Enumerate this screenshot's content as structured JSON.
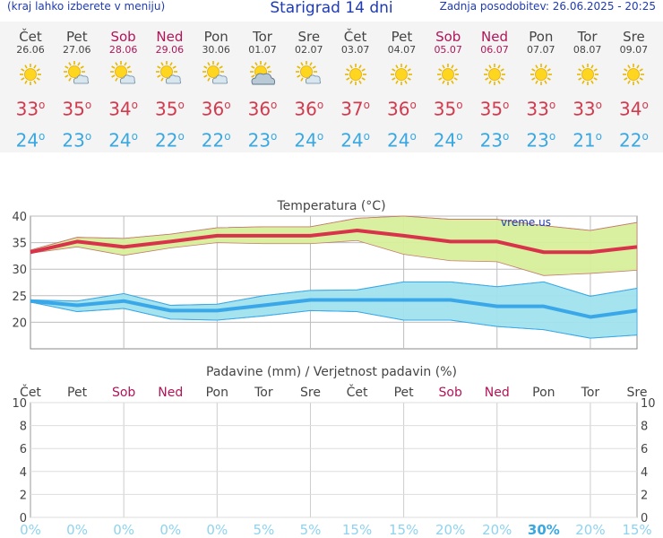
{
  "header": {
    "hint": "(kraj lahko izberete v meniju)",
    "title": "Starigrad 14 dni",
    "updated": "Zadnja posodobitev: 26.06.2025 - 20:25"
  },
  "days": [
    {
      "name": "Čet",
      "date": "26.06",
      "weekend": false,
      "icon": "sun-icon",
      "max": "33",
      "min": "24"
    },
    {
      "name": "Pet",
      "date": "27.06",
      "weekend": false,
      "icon": "sun-cloud-icon",
      "max": "35",
      "min": "23"
    },
    {
      "name": "Sob",
      "date": "28.06",
      "weekend": true,
      "icon": "sun-cloud-icon",
      "max": "34",
      "min": "24"
    },
    {
      "name": "Ned",
      "date": "29.06",
      "weekend": true,
      "icon": "sun-cloud-icon",
      "max": "35",
      "min": "22"
    },
    {
      "name": "Pon",
      "date": "30.06",
      "weekend": false,
      "icon": "sun-cloud-icon",
      "max": "36",
      "min": "22"
    },
    {
      "name": "Tor",
      "date": "01.07",
      "weekend": false,
      "icon": "cloud-sun-icon",
      "max": "36",
      "min": "23"
    },
    {
      "name": "Sre",
      "date": "02.07",
      "weekend": false,
      "icon": "sun-cloud-icon",
      "max": "36",
      "min": "24"
    },
    {
      "name": "Čet",
      "date": "03.07",
      "weekend": false,
      "icon": "sun-icon",
      "max": "37",
      "min": "24"
    },
    {
      "name": "Pet",
      "date": "04.07",
      "weekend": false,
      "icon": "sun-icon",
      "max": "36",
      "min": "24"
    },
    {
      "name": "Sob",
      "date": "05.07",
      "weekend": true,
      "icon": "sun-icon",
      "max": "35",
      "min": "24"
    },
    {
      "name": "Ned",
      "date": "06.07",
      "weekend": true,
      "icon": "sun-icon",
      "max": "35",
      "min": "23"
    },
    {
      "name": "Pon",
      "date": "07.07",
      "weekend": false,
      "icon": "sun-icon",
      "max": "33",
      "min": "23"
    },
    {
      "name": "Tor",
      "date": "08.07",
      "weekend": false,
      "icon": "sun-icon",
      "max": "33",
      "min": "21"
    },
    {
      "name": "Sre",
      "date": "09.07",
      "weekend": false,
      "icon": "sun-icon",
      "max": "34",
      "min": "22"
    }
  ],
  "degree_symbol": "o",
  "colors": {
    "max_line": "#d8334a",
    "max_band": "#d6ef9a",
    "min_line": "#3aa8e8",
    "min_band": "#a0e2ee",
    "weekend": "#b0155a",
    "precip_pct": "#8ed3f0",
    "precip_pct_bold": "#3aa8e0"
  },
  "chart_data": [
    {
      "type": "line",
      "title": "Temperatura (°C)",
      "watermark": "vreme.us",
      "ylim": [
        15,
        40
      ],
      "yticks": [
        "20",
        "25",
        "30",
        "35",
        "40"
      ],
      "categories": [
        "26.06",
        "27.06",
        "28.06",
        "29.06",
        "30.06",
        "01.07",
        "02.07",
        "03.07",
        "04.07",
        "05.07",
        "06.07",
        "07.07",
        "08.07",
        "09.07"
      ],
      "series": [
        {
          "name": "max",
          "values": [
            33.2,
            35.2,
            34.2,
            35.2,
            36.3,
            36.3,
            36.3,
            37.3,
            36.3,
            35.2,
            35.2,
            33.2,
            33.2,
            34.2
          ]
        },
        {
          "name": "max_upper",
          "values": [
            33.6,
            36.0,
            35.8,
            36.6,
            37.8,
            38.0,
            38.0,
            39.6,
            40.0,
            39.4,
            39.4,
            38.2,
            37.3,
            38.8
          ]
        },
        {
          "name": "max_lower",
          "values": [
            33.0,
            34.2,
            32.6,
            34.0,
            35.0,
            34.8,
            34.8,
            35.4,
            32.8,
            31.6,
            31.4,
            28.8,
            29.2,
            29.8
          ]
        },
        {
          "name": "min",
          "values": [
            24.0,
            23.2,
            24.0,
            22.2,
            22.2,
            23.2,
            24.2,
            24.2,
            24.2,
            24.2,
            23.0,
            23.0,
            21.0,
            22.2
          ]
        },
        {
          "name": "min_upper",
          "values": [
            24.2,
            24.0,
            25.4,
            23.2,
            23.4,
            25.0,
            26.0,
            26.1,
            27.6,
            27.6,
            26.7,
            27.6,
            24.9,
            26.4
          ]
        },
        {
          "name": "min_lower",
          "values": [
            23.8,
            22.0,
            22.6,
            20.6,
            20.4,
            21.2,
            22.2,
            22.0,
            20.4,
            20.4,
            19.2,
            18.6,
            17.0,
            17.6
          ]
        }
      ]
    },
    {
      "type": "bar",
      "title": "Padavine (mm) / Verjetnost padavin (%)",
      "ylim": [
        0,
        10
      ],
      "yticks": [
        "0",
        "2",
        "4",
        "6",
        "8",
        "10"
      ],
      "categories": [
        "Čet",
        "Pet",
        "Sob",
        "Ned",
        "Pon",
        "Tor",
        "Sre",
        "Čet",
        "Pet",
        "Sob",
        "Ned",
        "Pon",
        "Tor",
        "Sre"
      ],
      "weekend": [
        false,
        false,
        true,
        true,
        false,
        false,
        false,
        false,
        false,
        true,
        true,
        false,
        false,
        false
      ],
      "precipitation_mm": [
        0,
        0,
        0,
        0,
        0,
        0,
        0,
        0,
        0,
        0,
        0,
        0,
        0,
        0
      ],
      "probability_labels": [
        "0%",
        "0%",
        "0%",
        "0%",
        "0%",
        "5%",
        "5%",
        "15%",
        "15%",
        "20%",
        "20%",
        "30%",
        "20%",
        "15%"
      ],
      "probability_bold": [
        false,
        false,
        false,
        false,
        false,
        false,
        false,
        false,
        false,
        false,
        false,
        true,
        false,
        false
      ]
    }
  ]
}
